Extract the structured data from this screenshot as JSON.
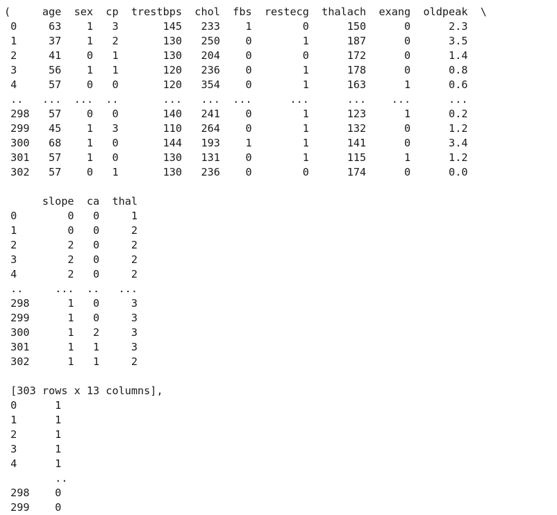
{
  "output_lines": [
    "(     age  sex  cp  trestbps  chol  fbs  restecg  thalach  exang  oldpeak  \\",
    " 0     63    1   3       145   233    1        0      150      0      2.3",
    " 1     37    1   2       130   250    0        1      187      0      3.5",
    " 2     41    0   1       130   204    0        0      172      0      1.4",
    " 3     56    1   1       120   236    0        1      178      0      0.8",
    " 4     57    0   0       120   354    0        1      163      1      0.6",
    " ..   ...  ...  ..       ...   ...  ...      ...      ...    ...      ...",
    " 298   57    0   0       140   241    0        1      123      1      0.2",
    " 299   45    1   3       110   264    0        1      132      0      1.2",
    " 300   68    1   0       144   193    1        1      141      0      3.4",
    " 301   57    1   0       130   131    0        1      115      1      1.2",
    " 302   57    0   1       130   236    0        0      174      0      0.0",
    "",
    "      slope  ca  thal",
    " 0        0   0     1",
    " 1        0   0     2",
    " 2        2   0     2",
    " 3        2   0     2",
    " 4        2   0     2",
    " ..     ...  ..   ...",
    " 298      1   0     3",
    " 299      1   0     3",
    " 300      1   2     3",
    " 301      1   1     3",
    " 302      1   1     2",
    "",
    " [303 rows x 13 columns],",
    " 0      1",
    " 1      1",
    " 2      1",
    " 3      1",
    " 4      1",
    "        ..",
    " 298    0",
    " 299    0"
  ]
}
